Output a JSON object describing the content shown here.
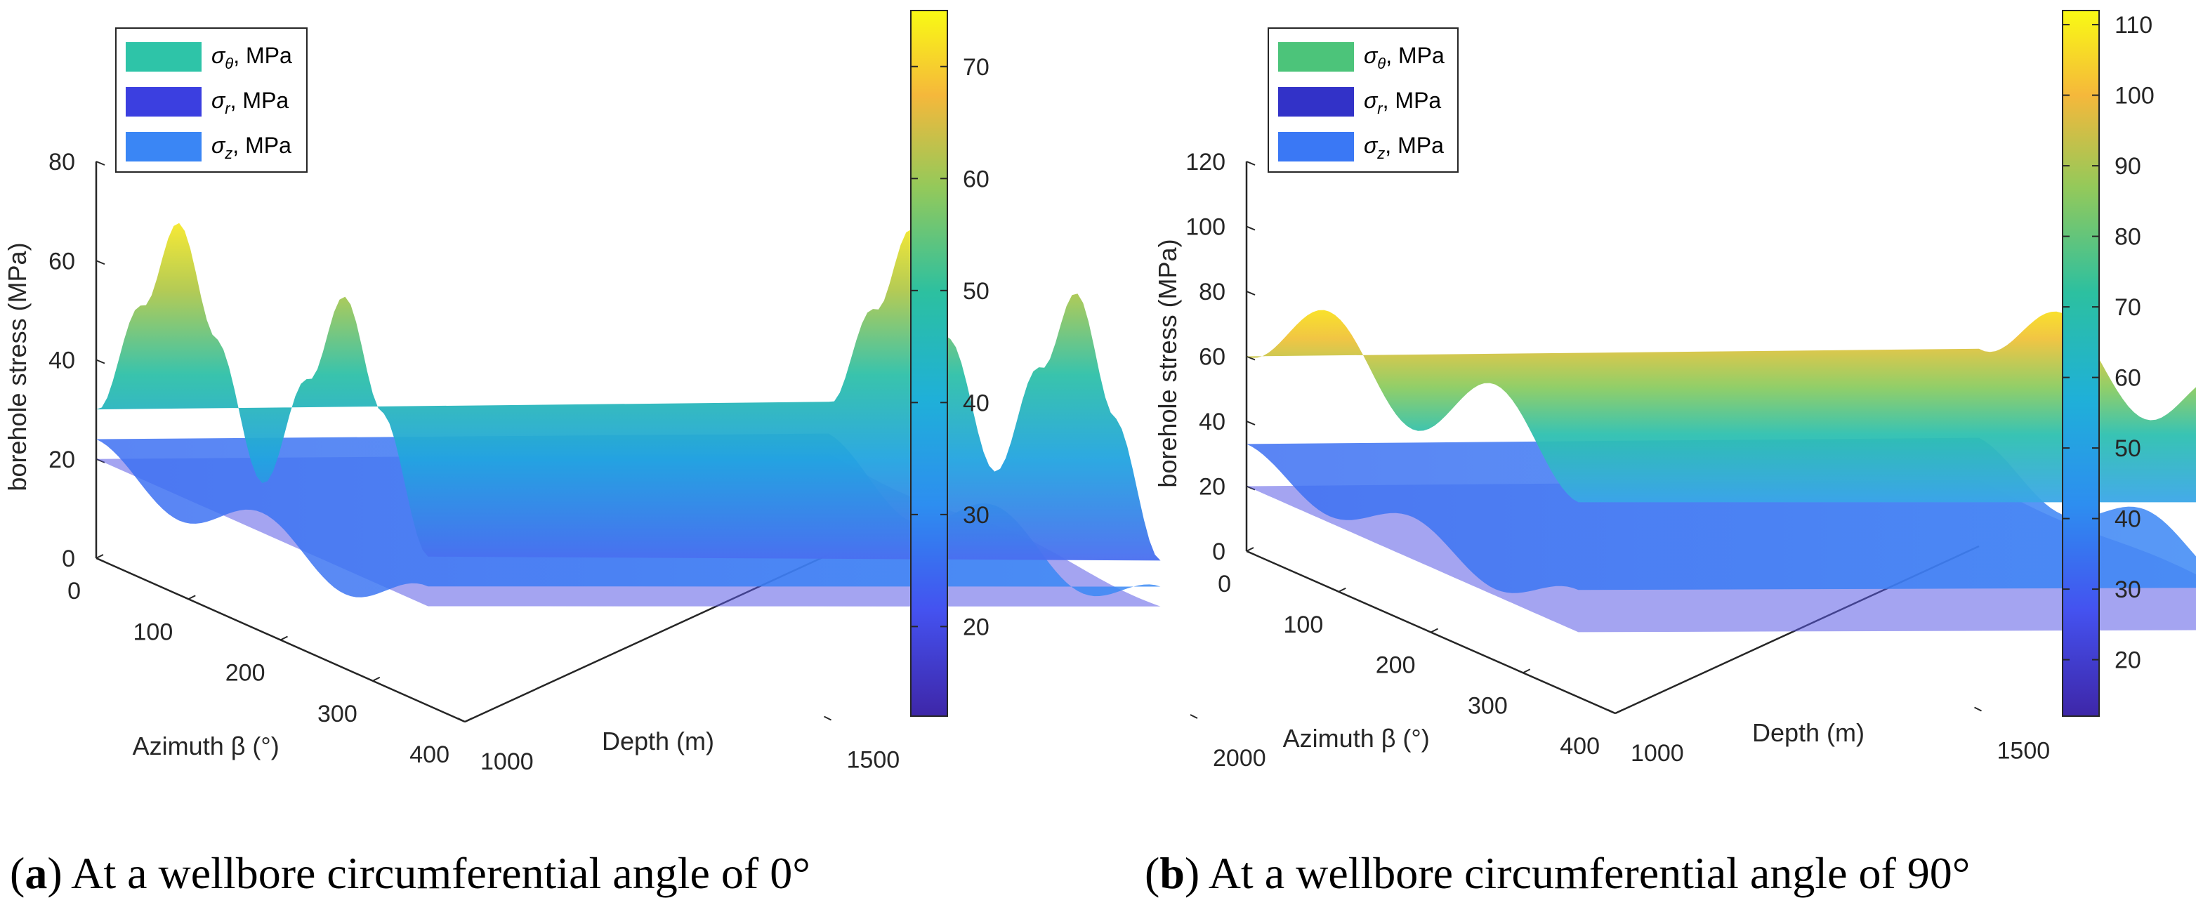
{
  "chart_data": [
    {
      "type": "surface",
      "caption_letter": "a",
      "caption_text": "At a wellbore circumferential angle of 0°",
      "xlabel": "Azimuth β (°)",
      "ylabel": "Depth (m)",
      "zlabel": "borehole stress (MPa)",
      "x_ticks": [
        "0",
        "100",
        "200",
        "300",
        "400"
      ],
      "y_ticks": [
        "1000",
        "1500",
        "2000"
      ],
      "z_ticks": [
        "0",
        "20",
        "40",
        "60",
        "80"
      ],
      "xlim": [
        0,
        400
      ],
      "ylim": [
        1000,
        2000
      ],
      "zlim": [
        0,
        80
      ],
      "colorbar_ticks": [
        "20",
        "30",
        "40",
        "50",
        "60",
        "70"
      ],
      "colorbar_range": [
        12,
        75
      ],
      "legend": [
        {
          "label": "σ",
          "sub": "θ",
          "unit": ", MPa",
          "color": "#2ec4a8"
        },
        {
          "label": "σ",
          "sub": "r",
          "unit": ", MPa",
          "color": "#3b3fe0"
        },
        {
          "label": "σ",
          "sub": "z",
          "unit": ", MPa",
          "color": "#3a86f5"
        }
      ],
      "series": [
        {
          "name": "σθ",
          "azimuth": [
            0,
            50,
            90,
            130,
            180,
            230,
            270,
            310,
            360
          ],
          "values": [
            30,
            55,
            75,
            55,
            30,
            55,
            75,
            55,
            30
          ]
        },
        {
          "name": "σr",
          "azimuth": [
            0,
            180,
            360
          ],
          "values": [
            20,
            20,
            20
          ]
        },
        {
          "name": "σz",
          "azimuth": [
            0,
            90,
            180,
            270,
            360
          ],
          "values": [
            24,
            15,
            24,
            15,
            24
          ]
        }
      ]
    },
    {
      "type": "surface",
      "caption_letter": "b",
      "caption_text": "At a wellbore circumferential angle of 90°",
      "xlabel": "Azimuth β (°)",
      "ylabel": "Depth (m)",
      "zlabel": "borehole stress (MPa)",
      "x_ticks": [
        "0",
        "100",
        "200",
        "300",
        "400"
      ],
      "y_ticks": [
        "1000",
        "1500",
        "2000"
      ],
      "z_ticks": [
        "0",
        "20",
        "40",
        "60",
        "80",
        "100",
        "120"
      ],
      "xlim": [
        0,
        400
      ],
      "ylim": [
        1000,
        2000
      ],
      "zlim": [
        0,
        120
      ],
      "colorbar_ticks": [
        "20",
        "30",
        "40",
        "50",
        "60",
        "70",
        "80",
        "90",
        "100",
        "110"
      ],
      "colorbar_range": [
        12,
        112
      ],
      "legend": [
        {
          "label": "σ",
          "sub": "θ",
          "unit": ", MPa",
          "color": "#4cc47a"
        },
        {
          "label": "σ",
          "sub": "r",
          "unit": ", MPa",
          "color": "#3232c8"
        },
        {
          "label": "σ",
          "sub": "z",
          "unit": ", MPa",
          "color": "#3a78f5"
        }
      ],
      "series": [
        {
          "name": "σθ",
          "azimuth": [
            0,
            90,
            180,
            270,
            360
          ],
          "values": [
            60,
            85,
            60,
            85,
            60
          ]
        },
        {
          "name": "σr",
          "azimuth": [
            0,
            180,
            360
          ],
          "values": [
            20,
            20,
            20
          ]
        },
        {
          "name": "σz",
          "azimuth": [
            0,
            90,
            180,
            270,
            360
          ],
          "values": [
            33,
            22,
            33,
            22,
            33
          ]
        }
      ]
    }
  ]
}
